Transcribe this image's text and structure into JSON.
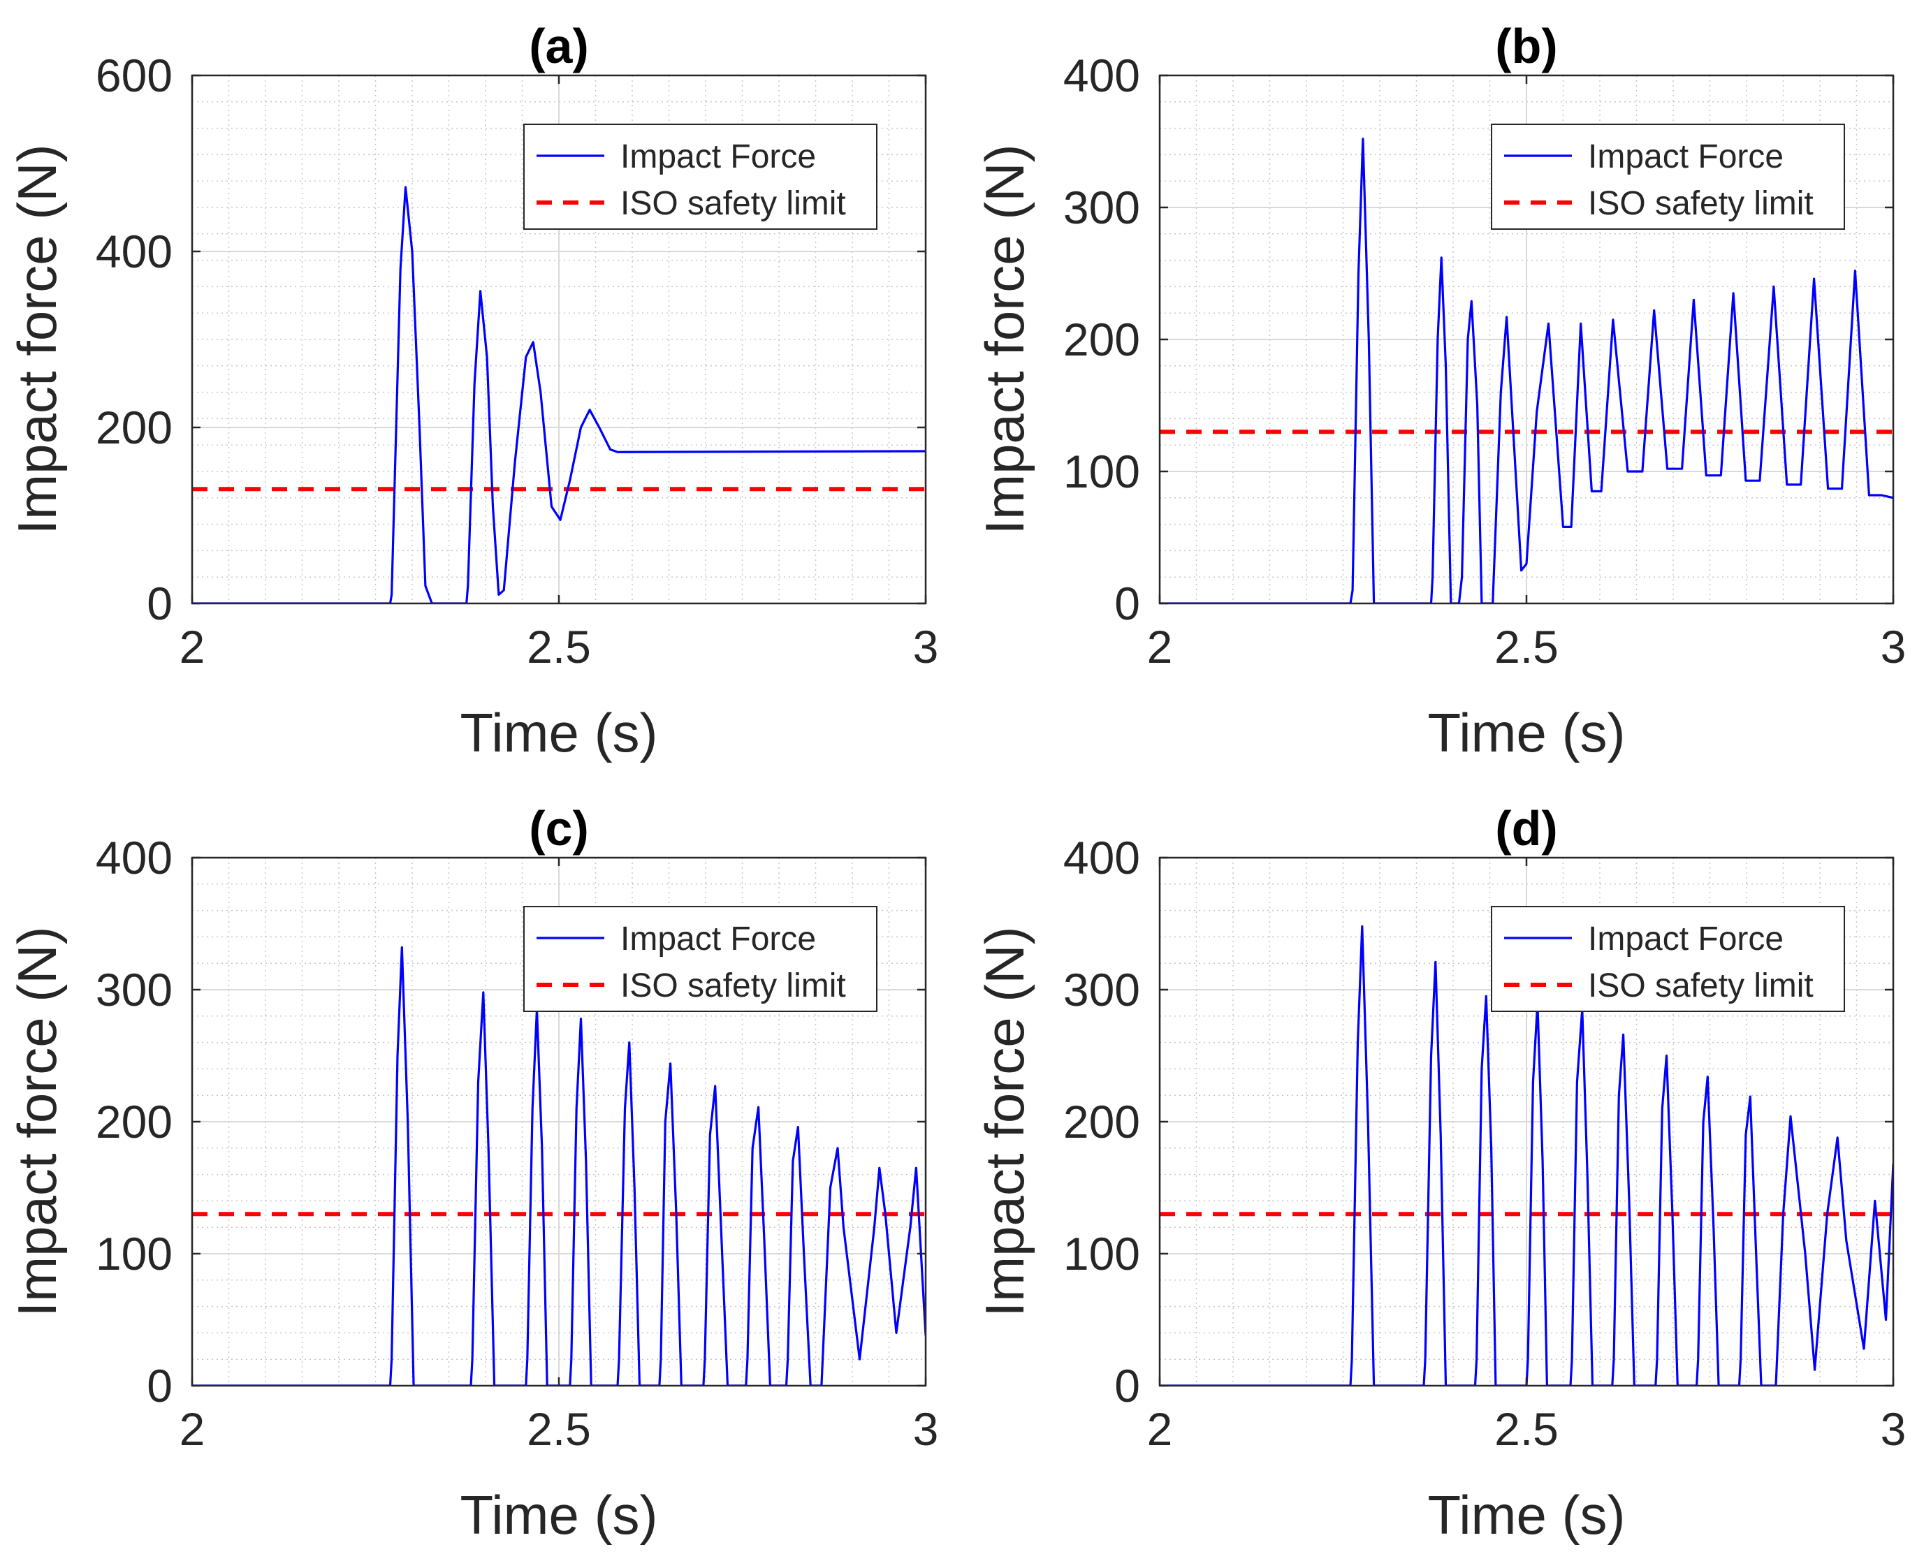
{
  "chart_data": [
    {
      "type": "line",
      "title": "(a)",
      "xlabel": "Time (s)",
      "ylabel": "Impact force (N)",
      "xlim": [
        2,
        3
      ],
      "ylim": [
        0,
        600
      ],
      "xticks": [
        2,
        2.5,
        3
      ],
      "xtick_labels": [
        "2",
        "2.5",
        "3"
      ],
      "yticks": [
        0,
        200,
        400,
        600
      ],
      "ytick_labels": [
        "0",
        "200",
        "400",
        "600"
      ],
      "grid": true,
      "minor_grid": true,
      "legend": {
        "position": "top-right",
        "entries": [
          "Impact Force",
          "ISO safety limit"
        ]
      },
      "limit": 130,
      "series": [
        {
          "name": "Impact Force",
          "color": "#0000ff",
          "x": [
            2.0,
            2.27,
            2.272,
            2.284,
            2.291,
            2.3,
            2.31,
            2.318,
            2.327,
            2.374,
            2.376,
            2.385,
            2.393,
            2.402,
            2.41,
            2.418,
            2.425,
            2.44,
            2.455,
            2.465,
            2.475,
            2.49,
            2.502,
            2.515,
            2.53,
            2.542,
            2.555,
            2.57,
            2.58,
            3.0
          ],
          "y": [
            0,
            0,
            10,
            380,
            473,
            400,
            200,
            20,
            0,
            0,
            20,
            250,
            355,
            280,
            110,
            10,
            15,
            160,
            280,
            297,
            240,
            110,
            95,
            140,
            200,
            220,
            200,
            175,
            172,
            173
          ]
        },
        {
          "name": "ISO safety limit",
          "color": "#ff0000",
          "dashed": true,
          "x": [
            2,
            3
          ],
          "y": [
            130,
            130
          ]
        }
      ]
    },
    {
      "type": "line",
      "title": "(b)",
      "xlabel": "Time (s)",
      "ylabel": "Impact force (N)",
      "xlim": [
        2,
        3
      ],
      "ylim": [
        0,
        400
      ],
      "xticks": [
        2,
        2.5,
        3
      ],
      "xtick_labels": [
        "2",
        "2.5",
        "3"
      ],
      "yticks": [
        0,
        100,
        200,
        300,
        400
      ],
      "ytick_labels": [
        "0",
        "100",
        "200",
        "300",
        "400"
      ],
      "grid": true,
      "minor_grid": true,
      "legend": {
        "position": "top-right",
        "entries": [
          "Impact Force",
          "ISO safety limit"
        ]
      },
      "limit": 130,
      "series": [
        {
          "name": "Impact Force",
          "color": "#0000ff",
          "x": [
            2.0,
            2.26,
            2.263,
            2.271,
            2.277,
            2.285,
            2.292,
            2.37,
            2.372,
            2.379,
            2.384,
            2.39,
            2.397,
            2.408,
            2.412,
            2.42,
            2.425,
            2.433,
            2.439,
            2.454,
            2.465,
            2.473,
            2.493,
            2.5,
            2.514,
            2.53,
            2.55,
            2.561,
            2.574,
            2.589,
            2.602,
            2.618,
            2.638,
            2.658,
            2.674,
            2.692,
            2.712,
            2.728,
            2.745,
            2.765,
            2.782,
            2.799,
            2.818,
            2.837,
            2.855,
            2.874,
            2.892,
            2.911,
            2.93,
            2.948,
            2.967,
            2.984,
            3.0
          ],
          "y": [
            0,
            0,
            10,
            250,
            352,
            200,
            0,
            0,
            20,
            200,
            262,
            180,
            0,
            0,
            20,
            200,
            229,
            150,
            0,
            0,
            160,
            217,
            25,
            30,
            145,
            212,
            58,
            58,
            212,
            85,
            85,
            215,
            100,
            100,
            222,
            102,
            102,
            230,
            97,
            97,
            235,
            93,
            93,
            240,
            90,
            90,
            246,
            87,
            87,
            252,
            82,
            82,
            80
          ]
        },
        {
          "name": "ISO safety limit",
          "color": "#ff0000",
          "dashed": true,
          "x": [
            2,
            3
          ],
          "y": [
            130,
            130
          ]
        }
      ]
    },
    {
      "type": "line",
      "title": "(c)",
      "xlabel": "Time (s)",
      "ylabel": "Impact force (N)",
      "xlim": [
        2,
        3
      ],
      "ylim": [
        0,
        400
      ],
      "xticks": [
        2,
        2.5,
        3
      ],
      "xtick_labels": [
        "2",
        "2.5",
        "3"
      ],
      "yticks": [
        0,
        100,
        200,
        300,
        400
      ],
      "ytick_labels": [
        "0",
        "100",
        "200",
        "300",
        "400"
      ],
      "grid": true,
      "minor_grid": true,
      "legend": {
        "position": "top-right",
        "entries": [
          "Impact Force",
          "ISO safety limit"
        ]
      },
      "limit": 130,
      "series": [
        {
          "name": "Impact Force",
          "color": "#0000ff",
          "x": [
            2.0,
            2.27,
            2.272,
            2.28,
            2.286,
            2.294,
            2.302,
            2.38,
            2.382,
            2.39,
            2.397,
            2.404,
            2.412,
            2.455,
            2.457,
            2.464,
            2.47,
            2.477,
            2.484,
            2.515,
            2.517,
            2.524,
            2.53,
            2.537,
            2.544,
            2.58,
            2.582,
            2.59,
            2.596,
            2.603,
            2.61,
            2.637,
            2.639,
            2.645,
            2.652,
            2.66,
            2.667,
            2.697,
            2.699,
            2.706,
            2.713,
            2.721,
            2.73,
            2.755,
            2.757,
            2.764,
            2.772,
            2.78,
            2.788,
            2.81,
            2.812,
            2.819,
            2.826,
            2.834,
            2.843,
            2.858,
            2.87,
            2.88,
            2.888,
            2.91,
            2.93,
            2.937,
            2.945,
            2.96,
            2.979,
            2.987,
            3.0
          ],
          "y": [
            0,
            0,
            20,
            250,
            332,
            200,
            0,
            0,
            20,
            230,
            298,
            180,
            0,
            0,
            20,
            210,
            285,
            180,
            0,
            0,
            20,
            210,
            278,
            170,
            0,
            0,
            20,
            210,
            260,
            150,
            0,
            0,
            20,
            200,
            244,
            130,
            0,
            0,
            20,
            190,
            227,
            120,
            0,
            0,
            20,
            180,
            211,
            110,
            0,
            0,
            20,
            170,
            196,
            100,
            0,
            0,
            150,
            180,
            120,
            20,
            120,
            165,
            130,
            40,
            120,
            165,
            38
          ]
        },
        {
          "name": "ISO safety limit",
          "color": "#ff0000",
          "dashed": true,
          "x": [
            2,
            3
          ],
          "y": [
            130,
            130
          ]
        }
      ]
    },
    {
      "type": "line",
      "title": "(d)",
      "xlabel": "Time (s)",
      "ylabel": "Impact force (N)",
      "xlim": [
        2,
        3
      ],
      "ylim": [
        0,
        400
      ],
      "xticks": [
        2,
        2.5,
        3
      ],
      "xtick_labels": [
        "2",
        "2.5",
        "3"
      ],
      "yticks": [
        0,
        100,
        200,
        300,
        400
      ],
      "ytick_labels": [
        "0",
        "100",
        "200",
        "300",
        "400"
      ],
      "grid": true,
      "minor_grid": true,
      "legend": {
        "position": "top-right",
        "entries": [
          "Impact Force",
          "ISO safety limit"
        ]
      },
      "limit": 130,
      "series": [
        {
          "name": "Impact Force",
          "color": "#0000ff",
          "x": [
            2.0,
            2.26,
            2.262,
            2.27,
            2.276,
            2.284,
            2.292,
            2.36,
            2.362,
            2.37,
            2.376,
            2.383,
            2.39,
            2.43,
            2.432,
            2.439,
            2.445,
            2.452,
            2.458,
            2.5,
            2.502,
            2.509,
            2.515,
            2.522,
            2.528,
            2.56,
            2.562,
            2.569,
            2.576,
            2.583,
            2.59,
            2.617,
            2.619,
            2.626,
            2.632,
            2.64,
            2.647,
            2.676,
            2.678,
            2.685,
            2.691,
            2.699,
            2.706,
            2.732,
            2.734,
            2.741,
            2.747,
            2.755,
            2.762,
            2.79,
            2.792,
            2.799,
            2.805,
            2.813,
            2.82,
            2.84,
            2.85,
            2.86,
            2.88,
            2.893,
            2.91,
            2.924,
            2.936,
            2.96,
            2.975,
            2.99,
            3.0
          ],
          "y": [
            0,
            0,
            20,
            260,
            348,
            200,
            0,
            0,
            20,
            250,
            321,
            190,
            0,
            0,
            20,
            240,
            295,
            180,
            0,
            0,
            20,
            230,
            290,
            170,
            0,
            0,
            20,
            230,
            285,
            160,
            0,
            0,
            20,
            220,
            266,
            140,
            0,
            0,
            20,
            210,
            250,
            130,
            0,
            0,
            20,
            200,
            234,
            120,
            0,
            0,
            20,
            190,
            219,
            100,
            0,
            0,
            130,
            204,
            100,
            12,
            130,
            188,
            110,
            28,
            140,
            50,
            168
          ]
        },
        {
          "name": "ISO safety limit",
          "color": "#ff0000",
          "dashed": true,
          "x": [
            2,
            3
          ],
          "y": [
            130,
            130
          ]
        }
      ]
    }
  ]
}
